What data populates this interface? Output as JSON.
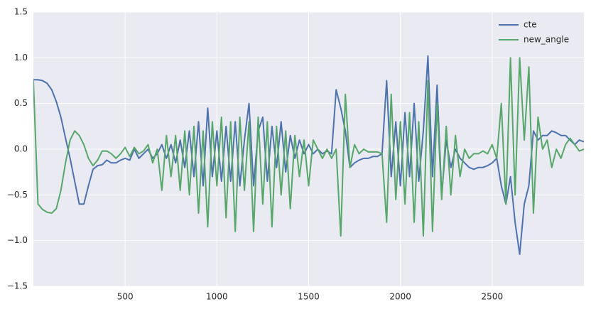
{
  "chart_data": {
    "type": "line",
    "x": [
      0,
      25,
      50,
      75,
      100,
      125,
      150,
      175,
      200,
      225,
      250,
      275,
      300,
      325,
      350,
      375,
      400,
      425,
      450,
      475,
      500,
      525,
      550,
      575,
      600,
      625,
      650,
      675,
      700,
      725,
      750,
      775,
      800,
      825,
      850,
      875,
      900,
      925,
      950,
      975,
      1000,
      1025,
      1050,
      1075,
      1100,
      1125,
      1150,
      1175,
      1200,
      1225,
      1250,
      1275,
      1300,
      1325,
      1350,
      1375,
      1400,
      1425,
      1450,
      1475,
      1500,
      1525,
      1550,
      1575,
      1600,
      1625,
      1650,
      1675,
      1700,
      1725,
      1750,
      1775,
      1800,
      1825,
      1850,
      1875,
      1900,
      1925,
      1950,
      1975,
      2000,
      2025,
      2050,
      2075,
      2100,
      2125,
      2150,
      2175,
      2200,
      2225,
      2250,
      2275,
      2300,
      2325,
      2350,
      2375,
      2400,
      2425,
      2450,
      2475,
      2500,
      2525,
      2550,
      2575,
      2600,
      2625,
      2650,
      2675,
      2700,
      2725,
      2750,
      2775,
      2800,
      2825,
      2850,
      2875,
      2900,
      2925,
      2950,
      2975,
      3000
    ],
    "series": [
      {
        "name": "cte",
        "color": "#4c72b0",
        "values": [
          0.76,
          0.76,
          0.75,
          0.72,
          0.65,
          0.52,
          0.35,
          0.12,
          -0.1,
          -0.35,
          -0.6,
          -0.6,
          -0.4,
          -0.22,
          -0.18,
          -0.17,
          -0.12,
          -0.15,
          -0.15,
          -0.12,
          -0.1,
          -0.12,
          0.0,
          -0.1,
          -0.05,
          0.0,
          -0.1,
          -0.05,
          0.05,
          -0.1,
          0.05,
          -0.15,
          0.1,
          -0.2,
          0.2,
          -0.3,
          0.3,
          -0.4,
          0.45,
          -0.3,
          0.2,
          -0.35,
          0.25,
          -0.35,
          0.3,
          -0.4,
          0.1,
          0.5,
          -0.4,
          0.2,
          0.35,
          -0.35,
          0.25,
          -0.2,
          0.3,
          -0.25,
          0.15,
          -0.1,
          0.1,
          -0.05,
          0.05,
          -0.05,
          0.0,
          -0.05,
          -0.02,
          -0.05,
          0.65,
          0.45,
          0.2,
          -0.2,
          -0.15,
          -0.12,
          -0.1,
          -0.1,
          -0.08,
          -0.08,
          -0.05,
          0.75,
          -0.3,
          0.3,
          -0.4,
          0.4,
          -0.3,
          0.5,
          -0.35,
          0.2,
          1.02,
          -0.3,
          0.7,
          -0.5,
          0.1,
          -0.2,
          0.0,
          -0.1,
          -0.15,
          -0.2,
          -0.22,
          -0.2,
          -0.2,
          -0.18,
          -0.15,
          -0.1,
          -0.4,
          -0.6,
          -0.3,
          -0.8,
          -1.15,
          -0.6,
          -0.4,
          0.2,
          0.1,
          0.15,
          0.15,
          0.2,
          0.18,
          0.15,
          0.15,
          0.1,
          0.05,
          0.1,
          0.08
        ]
      },
      {
        "name": "new_angle",
        "color": "#55a868",
        "values": [
          0.75,
          -0.6,
          -0.66,
          -0.69,
          -0.7,
          -0.65,
          -0.45,
          -0.15,
          0.1,
          0.2,
          0.15,
          0.05,
          -0.1,
          -0.18,
          -0.12,
          -0.02,
          -0.02,
          -0.05,
          -0.1,
          -0.05,
          0.02,
          -0.08,
          0.02,
          -0.05,
          -0.02,
          0.05,
          -0.15,
          0.0,
          -0.45,
          0.15,
          -0.3,
          0.15,
          -0.45,
          0.2,
          -0.5,
          0.25,
          -0.7,
          0.2,
          -0.85,
          0.3,
          -0.4,
          0.35,
          -0.75,
          0.3,
          -0.9,
          0.35,
          -0.45,
          0.3,
          -0.9,
          0.35,
          -0.6,
          0.3,
          -0.85,
          0.25,
          -0.5,
          0.2,
          -0.65,
          0.15,
          -0.3,
          0.1,
          -0.4,
          0.1,
          0.0,
          -0.1,
          0.0,
          -0.1,
          0.0,
          -0.95,
          0.6,
          -0.2,
          0.05,
          -0.05,
          0.0,
          -0.03,
          -0.03,
          -0.03,
          -0.05,
          -0.8,
          0.6,
          -0.55,
          0.3,
          -0.6,
          0.4,
          -0.8,
          0.3,
          -0.95,
          0.75,
          -0.9,
          0.5,
          -0.55,
          0.25,
          -0.5,
          0.15,
          -0.3,
          0.0,
          -0.1,
          -0.05,
          -0.05,
          -0.02,
          -0.05,
          0.05,
          -0.1,
          0.5,
          -0.6,
          1.0,
          -0.5,
          1.0,
          0.1,
          0.9,
          -0.7,
          0.35,
          0.0,
          0.1,
          -0.2,
          0.0,
          -0.1,
          0.05,
          0.12,
          0.05,
          -0.02,
          0.0
        ]
      }
    ],
    "xlim": [
      0,
      3000
    ],
    "xticks": [
      500,
      1000,
      1500,
      2000,
      2500
    ],
    "ylim": [
      -1.5,
      1.5
    ],
    "yticks": [
      {
        "value": -1.5,
        "label": "−1.5"
      },
      {
        "value": -1.0,
        "label": "−1.0"
      },
      {
        "value": -0.5,
        "label": "−0.5"
      },
      {
        "value": 0,
        "label": "0.0"
      },
      0.5,
      {
        "value": 1.0,
        "label": "1.0"
      },
      1.5
    ],
    "grid": true,
    "legend": "upper right"
  }
}
